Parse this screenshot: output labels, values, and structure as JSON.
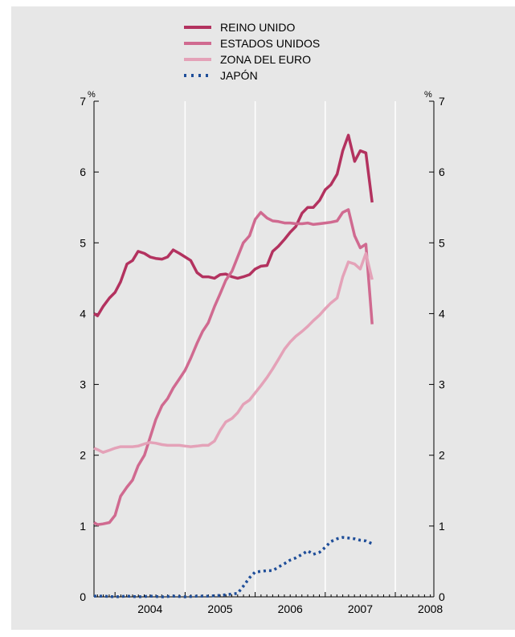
{
  "chart_data": {
    "type": "line",
    "title": "",
    "xlabel": "",
    "ylabel": "%",
    "ylabel_right": "%",
    "ylim": [
      0,
      7
    ],
    "yticks": [
      "0",
      "1",
      "2",
      "3",
      "4",
      "5",
      "6",
      "7"
    ],
    "xlim": [
      2003.7,
      2008.55
    ],
    "x_tick_labels": [
      "2004",
      "2005",
      "2006",
      "2007",
      "2008"
    ],
    "grid": "vertical year separators",
    "legend": "top",
    "series": [
      {
        "name": "REINO UNIDO",
        "color": "#b3325f",
        "style": "solid",
        "points": [
          [
            2003.7,
            4.0
          ],
          [
            2003.75,
            3.97
          ],
          [
            2003.83,
            4.1
          ],
          [
            2003.92,
            4.22
          ],
          [
            2004.0,
            4.3
          ],
          [
            2004.08,
            4.45
          ],
          [
            2004.17,
            4.7
          ],
          [
            2004.25,
            4.75
          ],
          [
            2004.33,
            4.88
          ],
          [
            2004.42,
            4.85
          ],
          [
            2004.5,
            4.8
          ],
          [
            2004.58,
            4.78
          ],
          [
            2004.67,
            4.77
          ],
          [
            2004.75,
            4.8
          ],
          [
            2004.83,
            4.9
          ],
          [
            2004.92,
            4.85
          ],
          [
            2005.0,
            4.8
          ],
          [
            2005.08,
            4.75
          ],
          [
            2005.17,
            4.58
          ],
          [
            2005.25,
            4.52
          ],
          [
            2005.33,
            4.52
          ],
          [
            2005.42,
            4.5
          ],
          [
            2005.5,
            4.55
          ],
          [
            2005.58,
            4.56
          ],
          [
            2005.67,
            4.52
          ],
          [
            2005.75,
            4.5
          ],
          [
            2005.83,
            4.52
          ],
          [
            2005.92,
            4.55
          ],
          [
            2006.0,
            4.63
          ],
          [
            2006.08,
            4.67
          ],
          [
            2006.17,
            4.68
          ],
          [
            2006.25,
            4.88
          ],
          [
            2006.33,
            4.95
          ],
          [
            2006.42,
            5.05
          ],
          [
            2006.5,
            5.15
          ],
          [
            2006.58,
            5.23
          ],
          [
            2006.67,
            5.42
          ],
          [
            2006.75,
            5.5
          ],
          [
            2006.83,
            5.5
          ],
          [
            2006.92,
            5.6
          ],
          [
            2007.0,
            5.75
          ],
          [
            2007.08,
            5.82
          ],
          [
            2007.17,
            5.97
          ],
          [
            2007.25,
            6.3
          ],
          [
            2007.33,
            6.52
          ],
          [
            2007.42,
            6.15
          ],
          [
            2007.5,
            6.3
          ],
          [
            2007.58,
            6.27
          ],
          [
            2007.67,
            5.57
          ]
        ]
      },
      {
        "name": "ESTADOS UNIDOS",
        "color": "#d06a90",
        "style": "solid",
        "points": [
          [
            2003.7,
            1.05
          ],
          [
            2003.75,
            1.02
          ],
          [
            2003.83,
            1.03
          ],
          [
            2003.92,
            1.05
          ],
          [
            2004.0,
            1.15
          ],
          [
            2004.08,
            1.42
          ],
          [
            2004.17,
            1.55
          ],
          [
            2004.25,
            1.65
          ],
          [
            2004.33,
            1.85
          ],
          [
            2004.42,
            2.0
          ],
          [
            2004.5,
            2.25
          ],
          [
            2004.58,
            2.5
          ],
          [
            2004.67,
            2.7
          ],
          [
            2004.75,
            2.8
          ],
          [
            2004.83,
            2.95
          ],
          [
            2004.92,
            3.08
          ],
          [
            2005.0,
            3.2
          ],
          [
            2005.08,
            3.37
          ],
          [
            2005.17,
            3.58
          ],
          [
            2005.25,
            3.75
          ],
          [
            2005.33,
            3.87
          ],
          [
            2005.42,
            4.1
          ],
          [
            2005.5,
            4.28
          ],
          [
            2005.58,
            4.47
          ],
          [
            2005.67,
            4.6
          ],
          [
            2005.75,
            4.8
          ],
          [
            2005.83,
            5.0
          ],
          [
            2005.92,
            5.1
          ],
          [
            2006.0,
            5.33
          ],
          [
            2006.08,
            5.43
          ],
          [
            2006.17,
            5.35
          ],
          [
            2006.25,
            5.31
          ],
          [
            2006.33,
            5.3
          ],
          [
            2006.42,
            5.28
          ],
          [
            2006.5,
            5.28
          ],
          [
            2006.58,
            5.27
          ],
          [
            2006.67,
            5.27
          ],
          [
            2006.75,
            5.28
          ],
          [
            2006.83,
            5.26
          ],
          [
            2006.92,
            5.27
          ],
          [
            2007.0,
            5.28
          ],
          [
            2007.08,
            5.29
          ],
          [
            2007.17,
            5.31
          ],
          [
            2007.25,
            5.43
          ],
          [
            2007.33,
            5.47
          ],
          [
            2007.42,
            5.1
          ],
          [
            2007.5,
            4.93
          ],
          [
            2007.58,
            4.98
          ],
          [
            2007.67,
            3.85
          ]
        ]
      },
      {
        "name": "ZONA DEL EURO",
        "color": "#e4a2b8",
        "style": "solid",
        "points": [
          [
            2003.7,
            2.1
          ],
          [
            2003.75,
            2.08
          ],
          [
            2003.83,
            2.04
          ],
          [
            2003.92,
            2.07
          ],
          [
            2004.0,
            2.1
          ],
          [
            2004.08,
            2.12
          ],
          [
            2004.17,
            2.12
          ],
          [
            2004.25,
            2.12
          ],
          [
            2004.33,
            2.13
          ],
          [
            2004.42,
            2.16
          ],
          [
            2004.5,
            2.18
          ],
          [
            2004.58,
            2.17
          ],
          [
            2004.67,
            2.15
          ],
          [
            2004.75,
            2.14
          ],
          [
            2004.83,
            2.14
          ],
          [
            2004.92,
            2.14
          ],
          [
            2005.0,
            2.13
          ],
          [
            2005.08,
            2.12
          ],
          [
            2005.17,
            2.13
          ],
          [
            2005.25,
            2.14
          ],
          [
            2005.33,
            2.14
          ],
          [
            2005.42,
            2.2
          ],
          [
            2005.5,
            2.35
          ],
          [
            2005.58,
            2.47
          ],
          [
            2005.67,
            2.52
          ],
          [
            2005.75,
            2.6
          ],
          [
            2005.83,
            2.72
          ],
          [
            2005.92,
            2.78
          ],
          [
            2006.0,
            2.88
          ],
          [
            2006.08,
            2.98
          ],
          [
            2006.17,
            3.1
          ],
          [
            2006.25,
            3.22
          ],
          [
            2006.33,
            3.35
          ],
          [
            2006.42,
            3.5
          ],
          [
            2006.5,
            3.6
          ],
          [
            2006.58,
            3.68
          ],
          [
            2006.67,
            3.75
          ],
          [
            2006.75,
            3.82
          ],
          [
            2006.83,
            3.9
          ],
          [
            2006.92,
            3.98
          ],
          [
            2007.0,
            4.07
          ],
          [
            2007.08,
            4.15
          ],
          [
            2007.17,
            4.22
          ],
          [
            2007.25,
            4.52
          ],
          [
            2007.33,
            4.73
          ],
          [
            2007.42,
            4.7
          ],
          [
            2007.5,
            4.63
          ],
          [
            2007.58,
            4.85
          ],
          [
            2007.67,
            4.48
          ]
        ]
      },
      {
        "name": "JAPÓN",
        "color": "#1f4e99",
        "style": "dotted",
        "points": [
          [
            2003.7,
            0.01
          ],
          [
            2003.83,
            0.01
          ],
          [
            2004.0,
            0.0
          ],
          [
            2004.17,
            0.01
          ],
          [
            2004.33,
            0.0
          ],
          [
            2004.5,
            0.01
          ],
          [
            2004.67,
            0.0
          ],
          [
            2004.83,
            0.01
          ],
          [
            2005.0,
            0.0
          ],
          [
            2005.17,
            0.01
          ],
          [
            2005.33,
            0.01
          ],
          [
            2005.5,
            0.02
          ],
          [
            2005.58,
            0.03
          ],
          [
            2005.67,
            0.04
          ],
          [
            2005.75,
            0.05
          ],
          [
            2005.83,
            0.15
          ],
          [
            2005.92,
            0.27
          ],
          [
            2006.0,
            0.35
          ],
          [
            2006.08,
            0.36
          ],
          [
            2006.17,
            0.37
          ],
          [
            2006.25,
            0.37
          ],
          [
            2006.33,
            0.42
          ],
          [
            2006.42,
            0.47
          ],
          [
            2006.5,
            0.52
          ],
          [
            2006.58,
            0.55
          ],
          [
            2006.67,
            0.6
          ],
          [
            2006.75,
            0.65
          ],
          [
            2006.83,
            0.6
          ],
          [
            2006.92,
            0.63
          ],
          [
            2007.0,
            0.7
          ],
          [
            2007.08,
            0.78
          ],
          [
            2007.17,
            0.82
          ],
          [
            2007.25,
            0.84
          ],
          [
            2007.33,
            0.83
          ],
          [
            2007.42,
            0.82
          ],
          [
            2007.5,
            0.8
          ],
          [
            2007.58,
            0.79
          ],
          [
            2007.67,
            0.75
          ]
        ]
      }
    ]
  }
}
